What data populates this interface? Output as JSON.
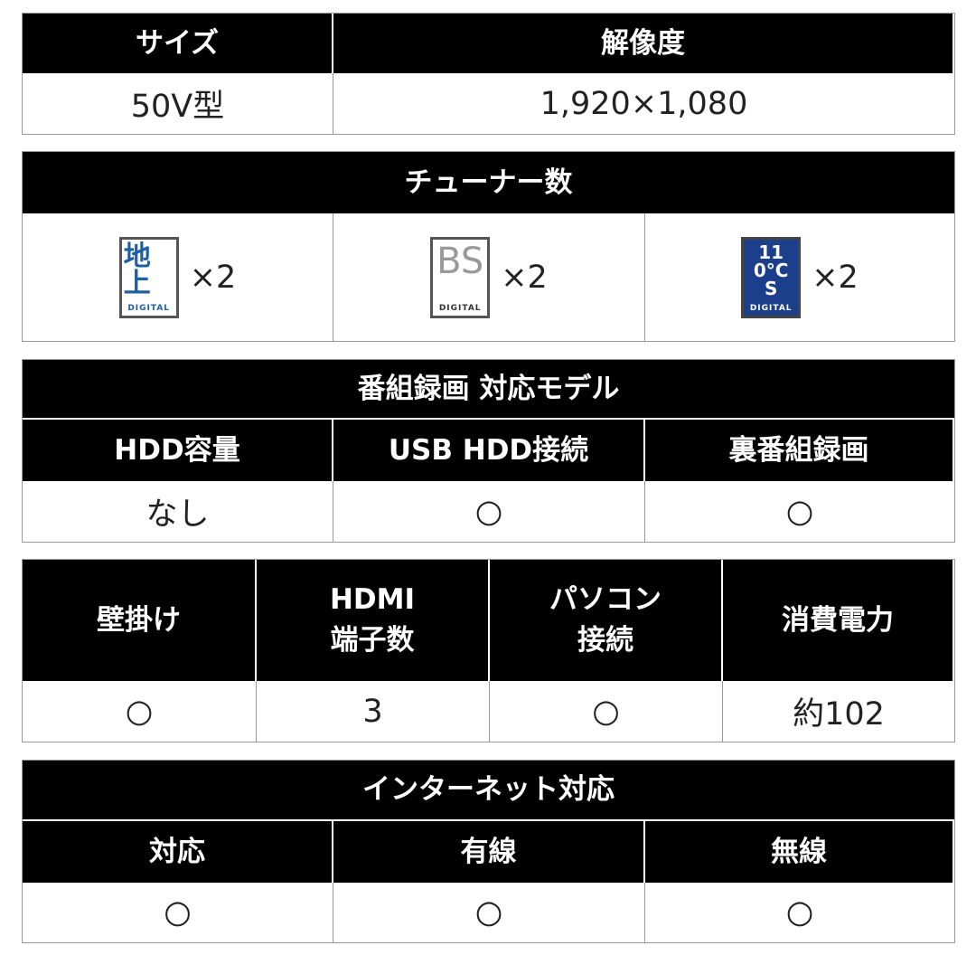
{
  "size_res": {
    "headers": [
      "サイズ",
      "解像度"
    ],
    "values": [
      "50V型",
      "1,920×1,080"
    ]
  },
  "tuner": {
    "title": "チューナー数",
    "items": [
      {
        "icon": "terrestrial-digital-logo",
        "mark": "地上",
        "label": "DIGITAL",
        "count": "×2",
        "color": "#1a5fa8"
      },
      {
        "icon": "bs-digital-logo",
        "mark": "BS",
        "label": "DIGITAL",
        "count": "×2",
        "color": "#888888"
      },
      {
        "icon": "cs110-digital-logo",
        "mark": "110°CS",
        "label": "DIGITAL",
        "count": "×2",
        "color": "#1b3f8a"
      }
    ]
  },
  "recording": {
    "title": "番組録画 対応モデル",
    "headers": [
      "HDD容量",
      "USB HDD接続",
      "裏番組録画"
    ],
    "values": [
      "なし",
      "○",
      "○"
    ]
  },
  "connect": {
    "headers": [
      "壁掛け",
      "HDMI\n端子数",
      "パソコン\n接続",
      "消費電力"
    ],
    "values": [
      "○",
      "3",
      "○",
      "約102"
    ]
  },
  "internet": {
    "title": "インターネット対応",
    "headers": [
      "対応",
      "有線",
      "無線"
    ],
    "values": [
      "○",
      "○",
      "○"
    ]
  }
}
